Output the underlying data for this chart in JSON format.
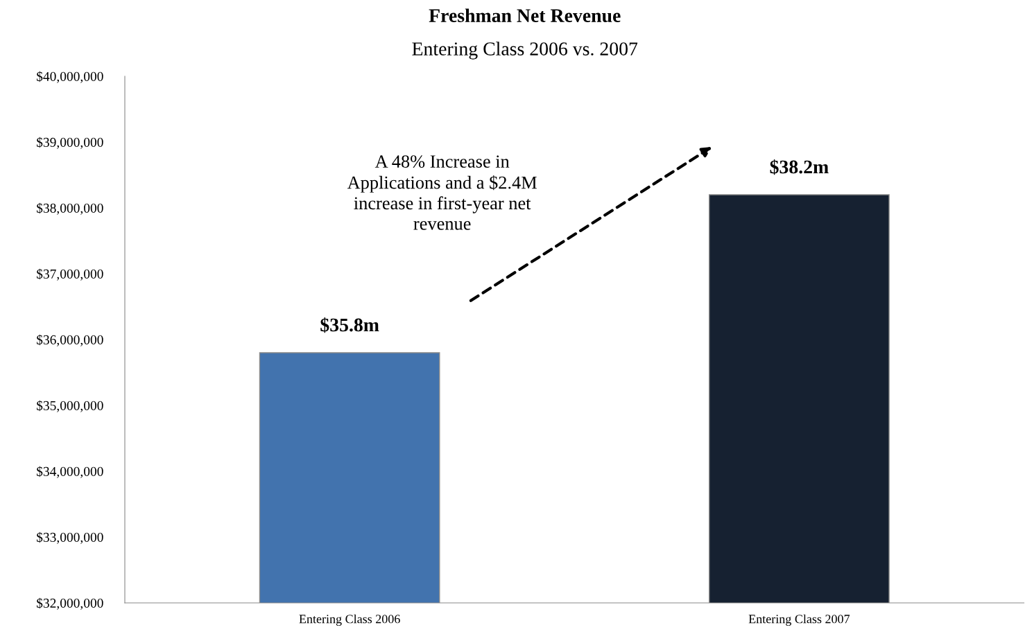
{
  "chart_data": {
    "type": "bar",
    "title": "Freshman Net Revenue",
    "subtitle": "Entering Class 2006 vs. 2007",
    "categories": [
      "Entering Class 2006",
      "Entering Class 2007"
    ],
    "values": [
      35800000,
      38200000
    ],
    "colors": [
      "#4273ae",
      "#162131"
    ],
    "value_labels": [
      "$35.8m",
      "$38.2m"
    ],
    "annotations": [
      "A 48% Increase in\nApplications and a $2.4M\nincrease in first-year net\nrevenue"
    ],
    "ylim": [
      32000000,
      40000000
    ],
    "yticks": [
      {
        "value": 32000000,
        "label": "$32,000,000"
      },
      {
        "value": 33000000,
        "label": "$33,000,000"
      },
      {
        "value": 34000000,
        "label": "$34,000,000"
      },
      {
        "value": 35000000,
        "label": "$35,000,000"
      },
      {
        "value": 36000000,
        "label": "$36,000,000"
      },
      {
        "value": 37000000,
        "label": "$37,000,000"
      },
      {
        "value": 38000000,
        "label": "$38,000,000"
      },
      {
        "value": 39000000,
        "label": "$39,000,000"
      },
      {
        "value": 40000000,
        "label": "$40,000,000"
      }
    ],
    "grid": false,
    "legend": false
  }
}
